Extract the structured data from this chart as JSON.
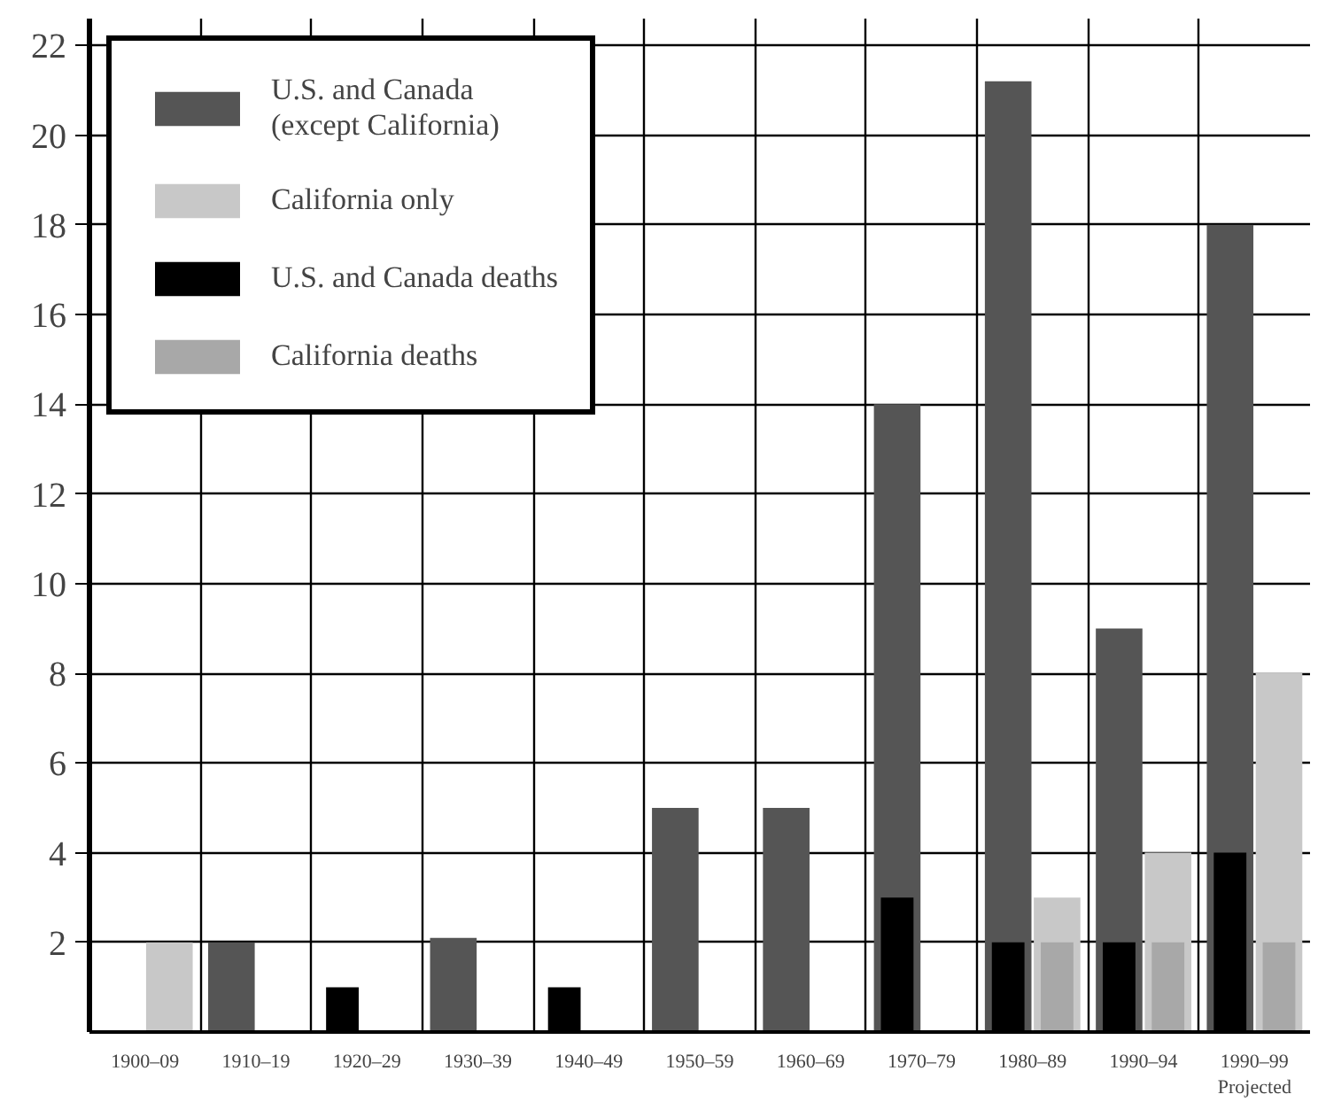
{
  "chart_data": {
    "type": "bar",
    "categories": [
      "1900–09",
      "1910–19",
      "1920–29",
      "1930–39",
      "1940–49",
      "1950–59",
      "1960–69",
      "1970–79",
      "1980–89",
      "1990–94",
      "1990–99\nProjected"
    ],
    "series": [
      {
        "name": "U.S. and Canada\n(except California)",
        "color": "#555555",
        "values": [
          null,
          2,
          null,
          2.1,
          null,
          5,
          5,
          14,
          21.2,
          9,
          18
        ]
      },
      {
        "name": "U.S. and Canada deaths",
        "color": "#000000",
        "values": [
          null,
          null,
          1,
          null,
          1,
          null,
          null,
          3,
          2,
          2,
          4
        ]
      },
      {
        "name": "California only",
        "color": "#c8c8c8",
        "values": [
          2,
          null,
          null,
          null,
          null,
          null,
          null,
          null,
          3,
          4,
          8
        ]
      },
      {
        "name": "California deaths",
        "color": "#a8a8a8",
        "values": [
          null,
          null,
          null,
          null,
          null,
          null,
          null,
          null,
          2,
          2,
          2
        ]
      }
    ],
    "ylim": [
      0,
      22.6
    ],
    "yticks": [
      2,
      4,
      6,
      8,
      10,
      12,
      14,
      16,
      18,
      20,
      22
    ],
    "grid": true,
    "legend": "top left"
  }
}
